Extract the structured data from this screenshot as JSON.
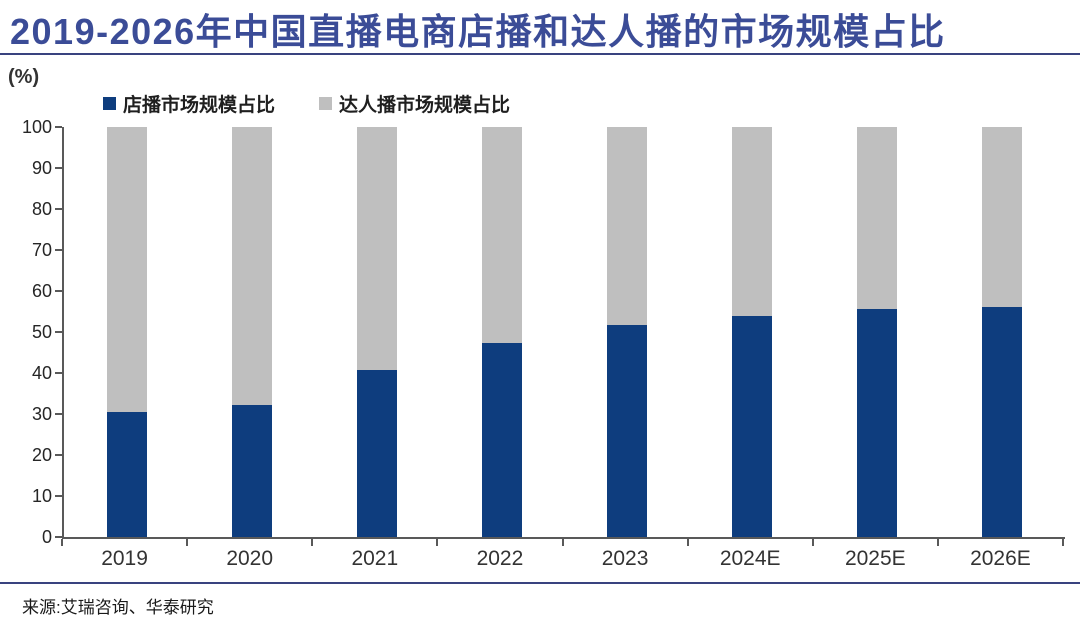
{
  "title": "2019-2026年中国直播电商店播和达人播的市场规模占比",
  "unit_label": "(%)",
  "source": "来源:艾瑞咨询、华泰研究",
  "colors": {
    "store_blue": "#0E3D7E",
    "talent_gray": "#BFBFBF",
    "title_blue": "#3B4C97",
    "rule_navy": "#39437F",
    "axis_gray": "#595959"
  },
  "chart_data": {
    "type": "bar",
    "stacked": true,
    "title": "2019-2026年中国直播电商店播和达人播的市场规模占比",
    "ylabel": "(%)",
    "ylim": [
      0,
      100
    ],
    "yticks": [
      0,
      10,
      20,
      30,
      40,
      50,
      60,
      70,
      80,
      90,
      100
    ],
    "grid": false,
    "legend_position": "top",
    "categories": [
      "2019",
      "2020",
      "2021",
      "2022",
      "2023",
      "2024E",
      "2025E",
      "2026E"
    ],
    "series": [
      {
        "name": "店播市场规模占比",
        "color": "#0E3D7E",
        "values": [
          30.4,
          32.1,
          40.7,
          47.2,
          51.8,
          54.0,
          55.6,
          56.1
        ]
      },
      {
        "name": "达人播市场规模占比",
        "color": "#BFBFBF",
        "values": [
          69.6,
          67.9,
          59.3,
          52.8,
          48.2,
          46.0,
          44.4,
          43.9
        ]
      }
    ]
  }
}
